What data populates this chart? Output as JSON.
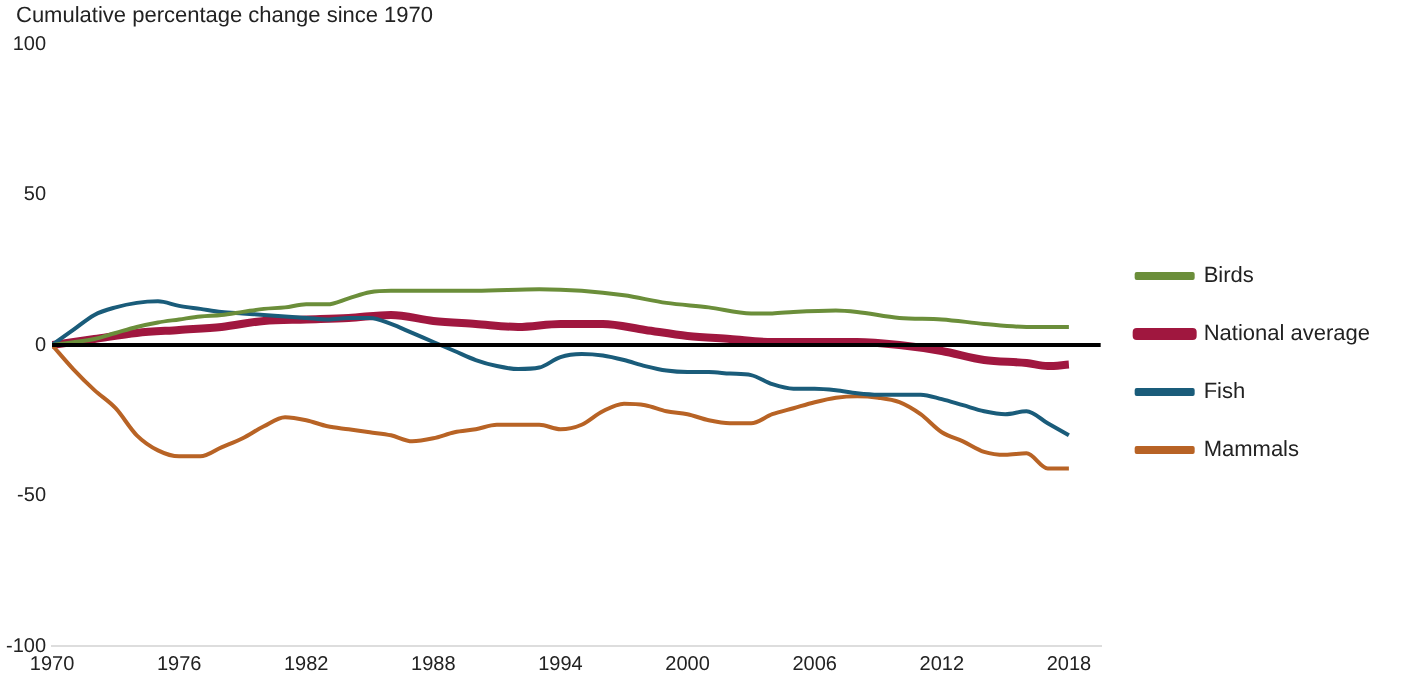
{
  "chart_data": {
    "type": "line",
    "ylabel": "Cumulative percentage change since 1970",
    "xlim": [
      1970,
      2019.5
    ],
    "xticks": [
      1970,
      1976,
      1982,
      1988,
      1994,
      2000,
      2006,
      2012,
      2018
    ],
    "ylim": [
      -100,
      100
    ],
    "yticks": [
      -100,
      -50,
      0,
      50,
      100
    ],
    "grid": false,
    "legend": "right",
    "marker": "none",
    "line_style": "solid",
    "ref_lines": [
      {
        "axis": "y",
        "value": 0,
        "color": "#000000"
      }
    ],
    "series": [
      {
        "name": "Birds",
        "color": "#6b8e3a",
        "x": [
          1970,
          1972,
          1973,
          1974,
          1975,
          1976,
          1977,
          1978,
          1979,
          1980,
          1981,
          1982,
          1983,
          1984,
          1985,
          1986,
          1987,
          1990,
          1993,
          1995,
          1997,
          1999,
          2001,
          2003,
          2004,
          2005,
          2007,
          2008,
          2010,
          2012,
          2014,
          2016,
          2018
        ],
        "values": [
          0,
          2,
          4,
          6,
          7.5,
          8.5,
          9.5,
          10,
          11,
          12,
          12.5,
          13.5,
          13.5,
          15.5,
          17.5,
          18,
          18,
          18,
          18.5,
          18,
          16.5,
          14,
          12.5,
          10.5,
          10.5,
          11,
          11.5,
          11,
          9,
          8.5,
          7,
          6,
          6
        ]
      },
      {
        "name": "National average",
        "color": "#a0173f",
        "x": [
          1970,
          1972,
          1974,
          1976,
          1978,
          1980,
          1982,
          1984,
          1986,
          1988,
          1990,
          1992,
          1994,
          1996,
          1998,
          2000,
          2002,
          2004,
          2008,
          2010,
          2012,
          2014,
          2016,
          2017,
          2018
        ],
        "values": [
          0,
          2,
          4,
          5,
          6,
          8,
          8.5,
          9,
          10,
          8,
          7,
          6,
          7,
          7,
          5,
          3,
          2,
          1,
          1,
          0,
          -2,
          -5,
          -6,
          -7,
          -6.5
        ]
      },
      {
        "name": "Fish",
        "color": "#1a5c7a",
        "x": [
          1970,
          1971,
          1972,
          1973,
          1974,
          1975,
          1976,
          1977,
          1978,
          1979,
          1980,
          1981,
          1982,
          1983,
          1984,
          1985,
          1986,
          1987,
          1988,
          1989,
          1990,
          1991,
          1992,
          1993,
          1994,
          1995,
          1996,
          1997,
          1998,
          1999,
          2000,
          2001,
          2002,
          2003,
          2004,
          2005,
          2006,
          2007,
          2008,
          2009,
          2010,
          2011,
          2012,
          2013,
          2014,
          2015,
          2016,
          2017,
          2018
        ],
        "values": [
          0,
          5,
          10,
          12.5,
          14,
          14.5,
          13,
          12,
          11,
          10.5,
          10,
          9.5,
          9,
          8.5,
          9,
          9,
          7,
          4,
          1,
          -2,
          -5,
          -7,
          -8,
          -7.5,
          -4,
          -3,
          -3.5,
          -5,
          -7,
          -8.5,
          -9,
          -9,
          -9.5,
          -10,
          -13,
          -14.5,
          -14.5,
          -15,
          -16,
          -16.5,
          -16.5,
          -16.5,
          -18,
          -20,
          -22,
          -23,
          -22,
          -26,
          -30
        ]
      },
      {
        "name": "Mammals",
        "color": "#b86325",
        "x": [
          1970,
          1971,
          1972,
          1973,
          1974,
          1975,
          1976,
          1977,
          1978,
          1979,
          1980,
          1981,
          1982,
          1983,
          1984,
          1985,
          1986,
          1987,
          1988,
          1989,
          1990,
          1991,
          1992,
          1993,
          1994,
          1995,
          1996,
          1997,
          1998,
          1999,
          2000,
          2001,
          2002,
          2003,
          2004,
          2005,
          2006,
          2007,
          2008,
          2009,
          2010,
          2011,
          2012,
          2013,
          2014,
          2015,
          2016,
          2017,
          2018
        ],
        "values": [
          0,
          -8,
          -15,
          -21,
          -30,
          -35,
          -37,
          -37,
          -34,
          -31,
          -27,
          -24,
          -25,
          -27,
          -28,
          -29,
          -30,
          -32,
          -31,
          -29,
          -28,
          -26.5,
          -26.5,
          -26.5,
          -28,
          -26.5,
          -22,
          -19.5,
          -20,
          -22,
          -23,
          -25,
          -26,
          -26,
          -23,
          -21,
          -19,
          -17.5,
          -17,
          -17.5,
          -19,
          -23,
          -29,
          -32,
          -35.5,
          -36.5,
          -36,
          -41,
          -41
        ]
      }
    ]
  }
}
